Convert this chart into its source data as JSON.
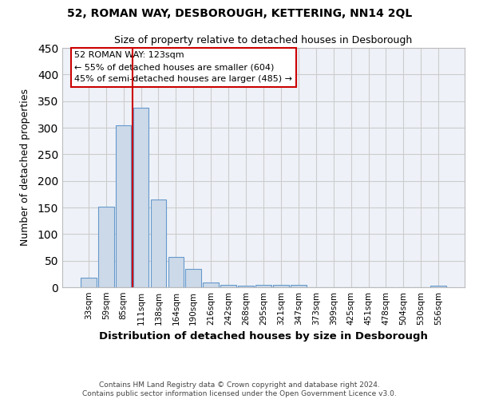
{
  "title1": "52, ROMAN WAY, DESBOROUGH, KETTERING, NN14 2QL",
  "title2": "Size of property relative to detached houses in Desborough",
  "xlabel": "Distribution of detached houses by size in Desborough",
  "ylabel": "Number of detached properties",
  "bar_color": "#ccd9e8",
  "bar_edge_color": "#6699cc",
  "categories": [
    "33sqm",
    "59sqm",
    "85sqm",
    "111sqm",
    "138sqm",
    "164sqm",
    "190sqm",
    "216sqm",
    "242sqm",
    "268sqm",
    "295sqm",
    "321sqm",
    "347sqm",
    "373sqm",
    "399sqm",
    "425sqm",
    "451sqm",
    "478sqm",
    "504sqm",
    "530sqm",
    "556sqm"
  ],
  "values": [
    18,
    152,
    305,
    338,
    165,
    57,
    35,
    9,
    5,
    3,
    5,
    5,
    4,
    0,
    0,
    0,
    0,
    0,
    0,
    0,
    3
  ],
  "vline_x": 2.5,
  "vline_color": "#cc0000",
  "annotation_line1": "52 ROMAN WAY: 123sqm",
  "annotation_line2": "← 55% of detached houses are smaller (604)",
  "annotation_line3": "45% of semi-detached houses are larger (485) →",
  "annotation_box_color": "#ffffff",
  "annotation_box_edge_color": "#cc0000",
  "footnote": "Contains HM Land Registry data © Crown copyright and database right 2024.\nContains public sector information licensed under the Open Government Licence v3.0.",
  "ylim": [
    0,
    450
  ],
  "yticks": [
    0,
    50,
    100,
    150,
    200,
    250,
    300,
    350,
    400,
    450
  ],
  "grid_color": "#cccccc",
  "bg_color": "#eef2f8"
}
